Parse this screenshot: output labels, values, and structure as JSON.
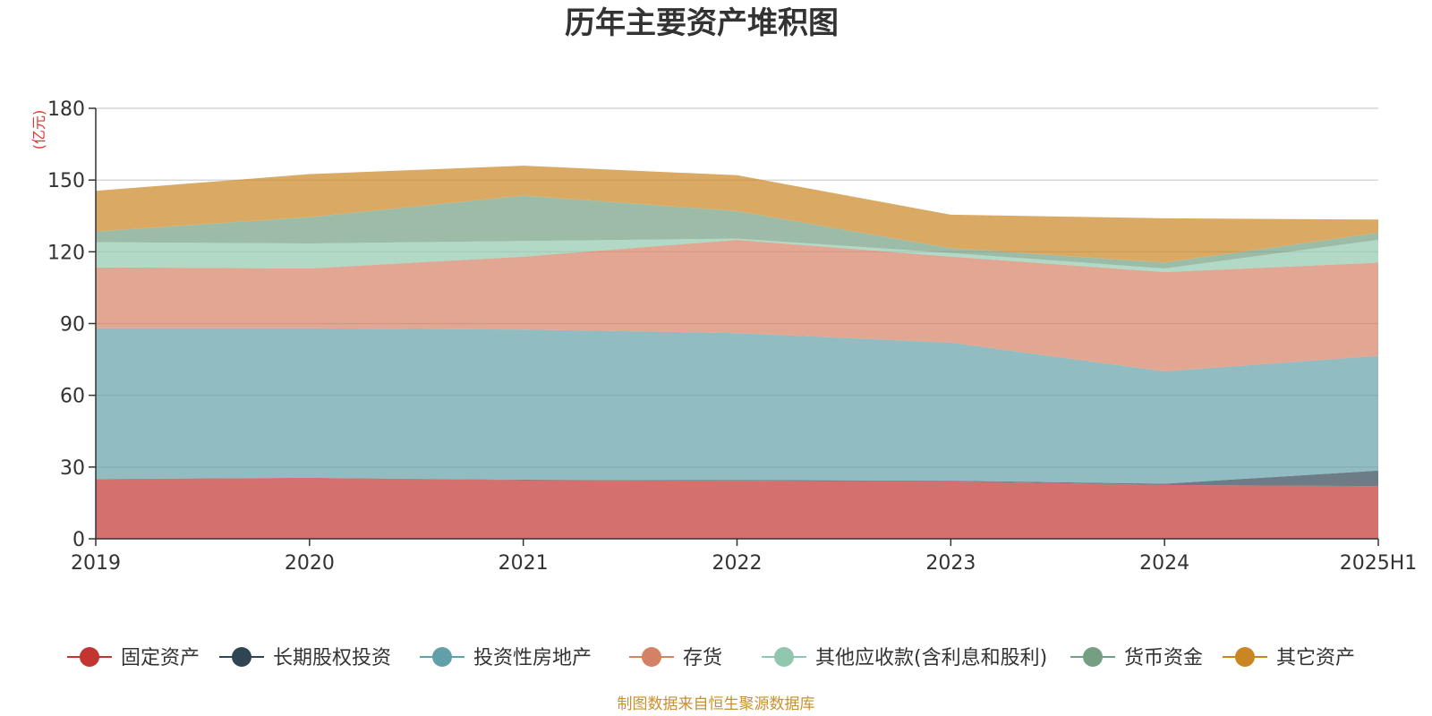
{
  "chart_data": {
    "type": "area",
    "stacked": true,
    "title": "历年主要资产堆积图",
    "unit": "(亿元)",
    "categories": [
      "2019",
      "2020",
      "2021",
      "2022",
      "2023",
      "2024",
      "2025H1"
    ],
    "ylim": [
      0,
      180
    ],
    "yticks": [
      "0",
      "30",
      "60",
      "90",
      "120",
      "150",
      "180"
    ],
    "grid": true,
    "legend_position": "bottom",
    "series": [
      {
        "name": "固定资产",
        "color": "#c23531",
        "values": [
          25,
          25.5,
          24.5,
          24.3,
          24,
          22.5,
          22
        ]
      },
      {
        "name": "长期股权投资",
        "color": "#2f4554",
        "values": [
          0,
          0,
          0.2,
          0.3,
          0.3,
          0.5,
          6.5
        ]
      },
      {
        "name": "投资性房地产",
        "color": "#61a0a8",
        "values": [
          63,
          62.5,
          62.8,
          61.4,
          57.7,
          47,
          48
        ]
      },
      {
        "name": "存货",
        "color": "#d48265",
        "values": [
          25.5,
          25,
          30.5,
          39,
          36,
          41.5,
          39
        ]
      },
      {
        "name": "其他应收款(含利息和股利)",
        "color": "#91c7ae",
        "values": [
          10.5,
          10.5,
          6.5,
          0.5,
          1.5,
          1.5,
          9.5
        ]
      },
      {
        "name": "货币资金",
        "color": "#749f83",
        "values": [
          4.5,
          11,
          19,
          11.5,
          2,
          2.5,
          3
        ]
      },
      {
        "name": "其它资产",
        "color": "#ca8622",
        "values": [
          17,
          18,
          12.5,
          15,
          14,
          18.5,
          5.5
        ]
      }
    ],
    "source": "制图数据来自恒生聚源数据库"
  }
}
